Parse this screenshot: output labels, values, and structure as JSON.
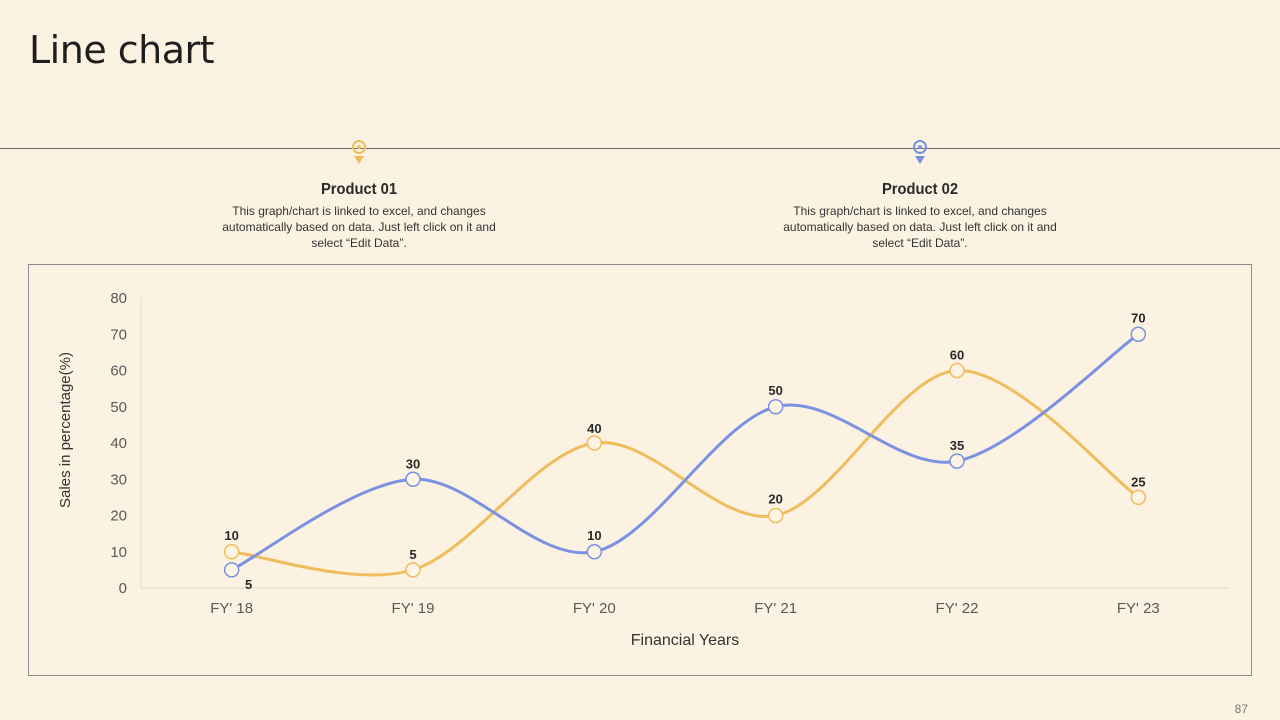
{
  "slide": {
    "title": "Line chart",
    "page_number": "87"
  },
  "products": [
    {
      "title": "Product 01",
      "description": "This graph/chart is linked to excel, and changes automatically based on data. Just left click on it and select “Edit Data”.",
      "color": "#f0bd5e"
    },
    {
      "title": "Product 02",
      "description": "This graph/chart is linked to excel, and changes automatically based on data. Just left click on it and select “Edit Data”.",
      "color": "#7b92e3"
    }
  ],
  "chart_data": {
    "type": "line",
    "smooth": true,
    "categories": [
      "FY' 18",
      "FY' 19",
      "FY' 20",
      "FY' 21",
      "FY' 22",
      "FY' 23"
    ],
    "series": [
      {
        "name": "Product 01",
        "color": "#f0bd5e",
        "values": [
          10,
          5,
          40,
          20,
          60,
          25
        ]
      },
      {
        "name": "Product 02",
        "color": "#7b92e3",
        "values": [
          5,
          30,
          10,
          50,
          35,
          70
        ]
      }
    ],
    "xlabel": "Financial Years",
    "ylabel": "Sales in percentage(%)",
    "ylim": [
      0,
      80
    ],
    "yticks": [
      0,
      10,
      20,
      30,
      40,
      50,
      60,
      70,
      80
    ],
    "grid": false,
    "legend": "none"
  }
}
